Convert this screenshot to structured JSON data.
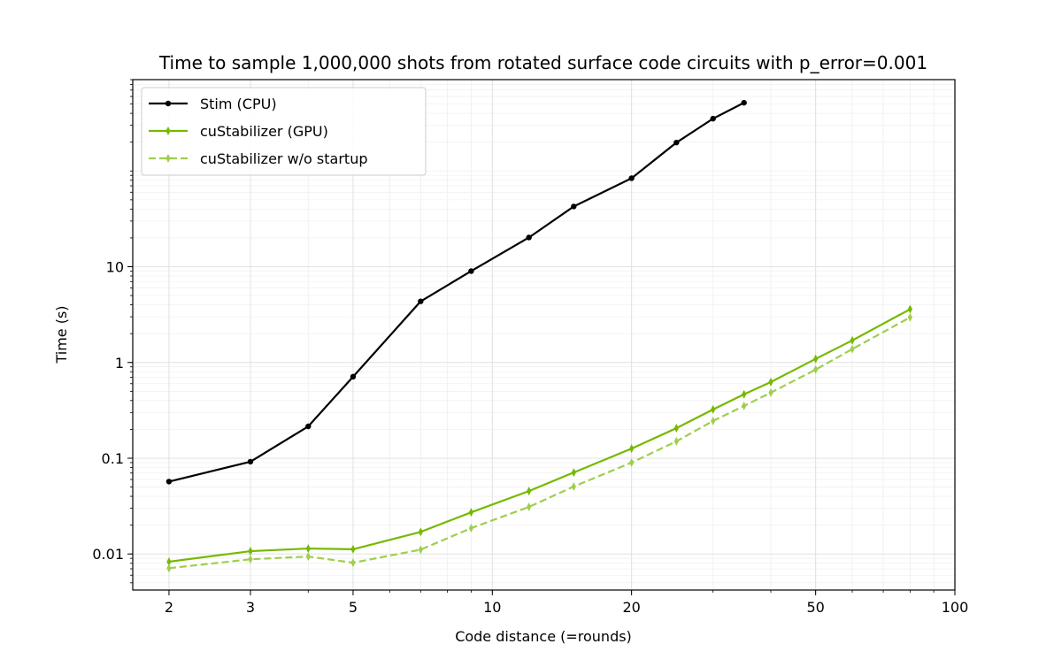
{
  "chart_data": {
    "type": "line",
    "title": "Time to sample 1,000,000 shots from rotated surface code circuits with p_error=0.001",
    "xlabel": "Code distance (=rounds)",
    "ylabel": "Time (s)",
    "xscale": "log",
    "yscale": "log",
    "xlim": [
      1.67,
      100
    ],
    "ylim": [
      0.0042,
      900
    ],
    "xticks": [
      2,
      3,
      5,
      10,
      20,
      50,
      100
    ],
    "xtick_labels": [
      "2",
      "3",
      "5",
      "10",
      "20",
      "50",
      "100"
    ],
    "yticks": [
      0.01,
      0.1,
      1,
      10
    ],
    "ytick_labels": [
      "0.01",
      "0.1",
      "1",
      "10"
    ],
    "grid": true,
    "legend_position": "top-left",
    "series": [
      {
        "name": "Stim (CPU)",
        "color": "#000000",
        "style": "solid",
        "marker": "circle",
        "x": [
          2,
          3,
          4,
          5,
          7,
          9,
          12,
          15,
          20,
          25,
          30,
          35
        ],
        "y": [
          0.057,
          0.092,
          0.215,
          0.71,
          4.35,
          9.0,
          20.2,
          42.6,
          84,
          198,
          352,
          516
        ]
      },
      {
        "name": "cuStabilizer (GPU)",
        "color": "#76b900",
        "style": "solid",
        "marker": "thin-diamond",
        "x": [
          2,
          3,
          4,
          5,
          7,
          9,
          12,
          15,
          20,
          25,
          30,
          35,
          40,
          50,
          60,
          80
        ],
        "y": [
          0.0083,
          0.0107,
          0.0114,
          0.0112,
          0.017,
          0.0272,
          0.0454,
          0.071,
          0.126,
          0.206,
          0.323,
          0.465,
          0.625,
          1.09,
          1.7,
          3.6
        ]
      },
      {
        "name": "cuStabilizer w/o startup",
        "color": "#9fce4d",
        "style": "dashed",
        "marker": "thin-diamond",
        "x": [
          2,
          3,
          4,
          5,
          7,
          9,
          12,
          15,
          20,
          25,
          30,
          35,
          40,
          50,
          60,
          80
        ],
        "y": [
          0.0071,
          0.0088,
          0.0094,
          0.0081,
          0.0111,
          0.0186,
          0.031,
          0.0506,
          0.09,
          0.15,
          0.245,
          0.352,
          0.484,
          0.843,
          1.38,
          2.96
        ]
      }
    ]
  }
}
